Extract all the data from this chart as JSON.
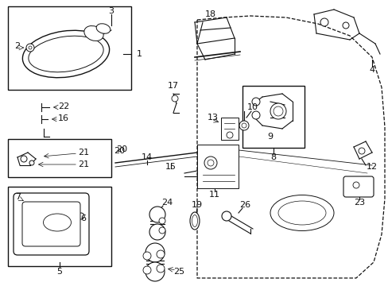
{
  "background_color": "#ffffff",
  "line_color": "#111111",
  "fig_width": 4.89,
  "fig_height": 3.6,
  "dpi": 100
}
